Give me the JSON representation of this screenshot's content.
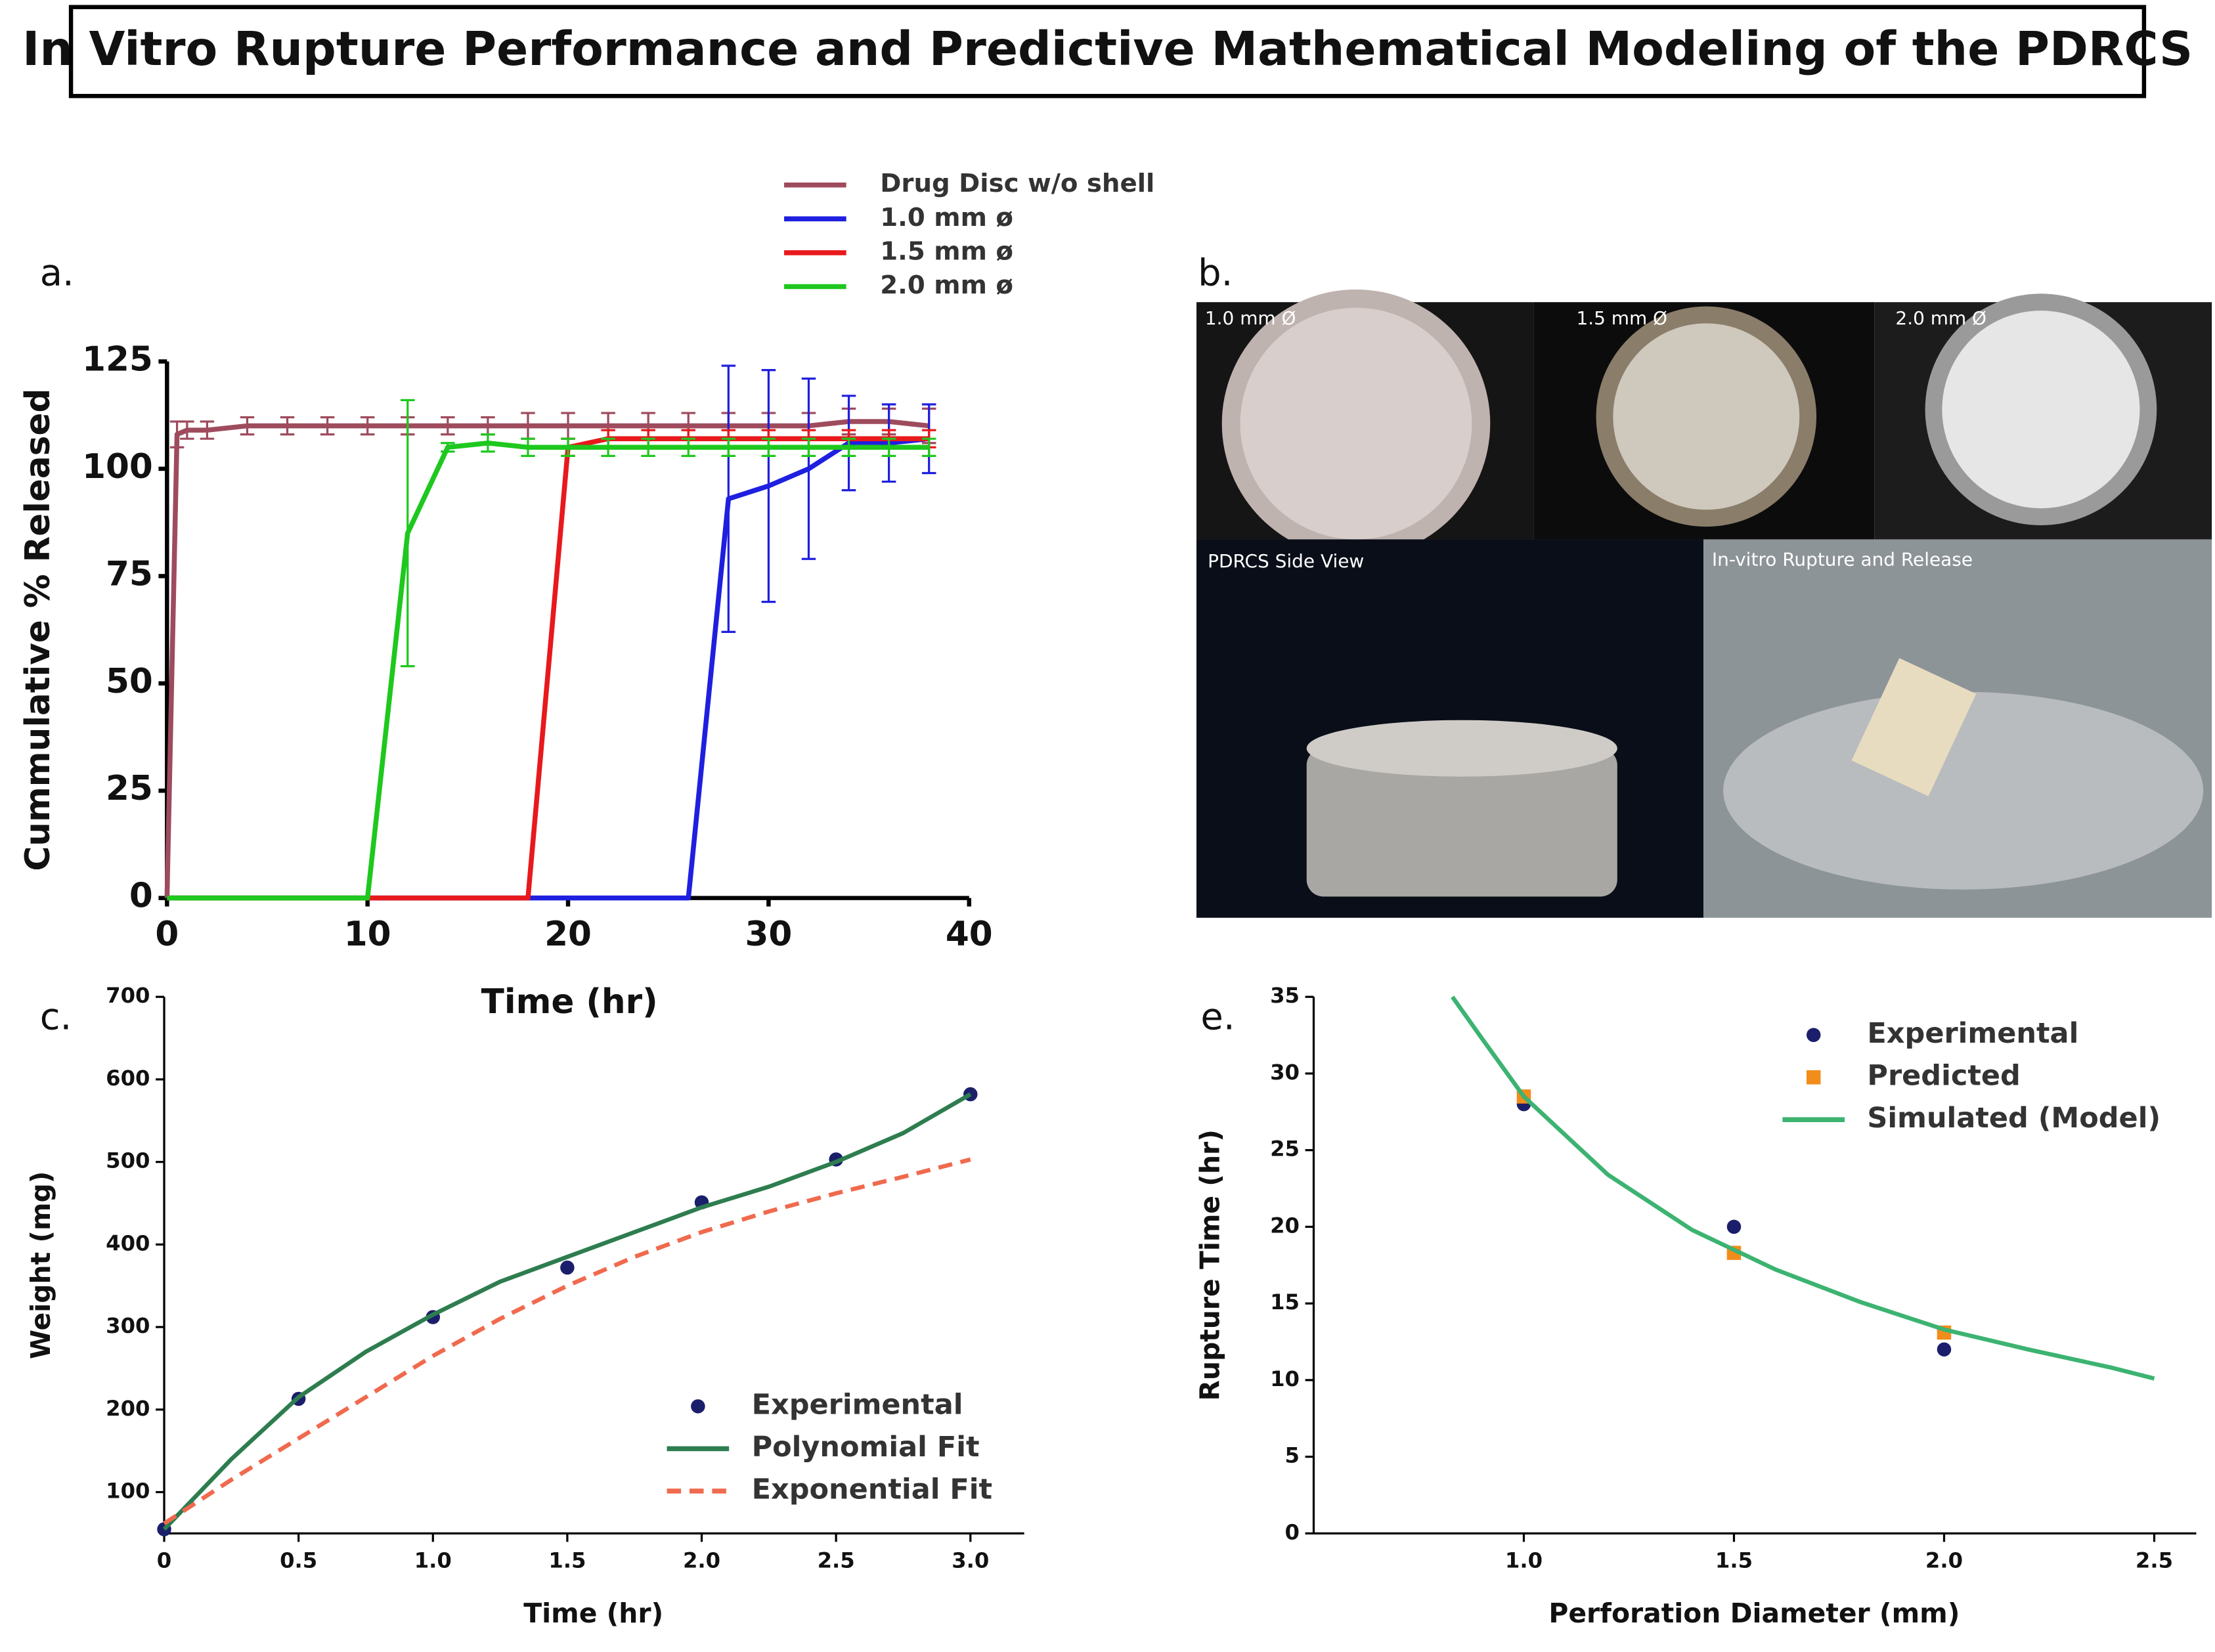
{
  "title": "In Vitro Rupture Performance and Predictive Mathematical Modeling of the PDRCS",
  "photos": {
    "panel_label": "b.",
    "captions": [
      "1.0 mm Ø",
      "1.5 mm Ø",
      "2.0 mm Ø",
      "PDRCS Side View",
      "In-vitro Rupture and Release"
    ]
  },
  "chart_data": [
    {
      "type": "line",
      "panel_label": "a.",
      "x_label": "Time (hr)",
      "y_label": "Cummulative % Released",
      "xlim": [
        0,
        40
      ],
      "xticks": [
        0,
        10,
        20,
        30,
        40
      ],
      "ylim": [
        0,
        125
      ],
      "yticks": [
        0,
        25,
        50,
        75,
        100,
        125
      ],
      "legend": "above",
      "series": [
        {
          "name": "Drug Disc w/o shell",
          "color": "#9e4b5e",
          "x": [
            0,
            0.5,
            1,
            2,
            4,
            6,
            8,
            10,
            12,
            14,
            16,
            18,
            20,
            22,
            24,
            26,
            28,
            30,
            32,
            34,
            36,
            38
          ],
          "values": [
            0,
            108,
            109,
            109,
            110,
            110,
            110,
            110,
            110,
            110,
            110,
            110,
            110,
            110,
            110,
            110,
            110,
            110,
            110,
            111,
            111,
            110
          ],
          "errors": [
            null,
            3,
            2,
            2,
            2,
            2,
            2,
            2,
            2,
            2,
            2,
            3,
            3,
            3,
            3,
            3,
            3,
            3,
            3,
            3,
            3,
            4
          ]
        },
        {
          "name": "1.0 mm ø",
          "color": "#1f1fe0",
          "x": [
            0,
            2,
            4,
            6,
            8,
            10,
            12,
            14,
            16,
            18,
            20,
            22,
            24,
            26,
            28,
            30,
            32,
            34,
            36,
            38
          ],
          "values": [
            0,
            0,
            0,
            0,
            0,
            0,
            0,
            0,
            0,
            0,
            0,
            0,
            0,
            0,
            93,
            96,
            100,
            106,
            106,
            107
          ],
          "errors": [
            null,
            null,
            null,
            null,
            null,
            null,
            null,
            null,
            null,
            null,
            null,
            null,
            null,
            null,
            31,
            27,
            21,
            11,
            9,
            8
          ]
        },
        {
          "name": "1.5 mm ø",
          "color": "#e8191c",
          "x": [
            0,
            2,
            4,
            6,
            8,
            10,
            12,
            14,
            16,
            18,
            20,
            22,
            24,
            26,
            28,
            30,
            32,
            34,
            36,
            38
          ],
          "values": [
            0,
            0,
            0,
            0,
            0,
            0,
            0,
            0,
            0,
            0,
            105,
            107,
            107,
            107,
            107,
            107,
            107,
            107,
            107,
            107
          ],
          "errors": [
            null,
            null,
            null,
            null,
            null,
            null,
            null,
            null,
            null,
            null,
            2,
            2,
            2,
            2,
            2,
            2,
            2,
            2,
            2,
            2
          ]
        },
        {
          "name": "2.0 mm ø",
          "color": "#1ec81e",
          "x": [
            0,
            2,
            4,
            6,
            8,
            10,
            12,
            14,
            16,
            18,
            20,
            22,
            24,
            26,
            28,
            30,
            32,
            34,
            36,
            38
          ],
          "values": [
            0,
            0,
            0,
            0,
            0,
            0,
            85,
            105,
            106,
            105,
            105,
            105,
            105,
            105,
            105,
            105,
            105,
            105,
            105,
            105
          ],
          "errors": [
            null,
            null,
            null,
            null,
            null,
            null,
            31,
            1,
            2,
            2,
            2,
            2,
            2,
            2,
            2,
            2,
            2,
            2,
            2,
            2
          ]
        }
      ]
    },
    {
      "type": "scatter",
      "panel_label": "c.",
      "x_label": "Time (hr)",
      "y_label": "Weight (mg)",
      "xlim": [
        0,
        3.2
      ],
      "xticks": [
        0,
        0.5,
        {
          "value": 1,
          "label": "1.0"
        },
        1.5,
        {
          "value": 2,
          "label": "2.0"
        },
        2.5,
        {
          "value": 3,
          "label": "3.0"
        }
      ],
      "ylim": [
        50,
        700
      ],
      "yticks": [
        100,
        200,
        300,
        400,
        500,
        600,
        700
      ],
      "legend": "lower right",
      "series": [
        {
          "name": "Experimental",
          "color": "#1b1f6b",
          "kind": "markers",
          "marker": "circle",
          "x": [
            0,
            0.5,
            1,
            1.5,
            2,
            2.5,
            3
          ],
          "values": [
            55,
            213,
            312,
            372,
            451,
            503,
            582
          ]
        },
        {
          "name": "Polynomial Fit",
          "color": "#2e7d4f",
          "kind": "line",
          "dashed": false,
          "x": [
            0,
            0.25,
            0.5,
            0.75,
            1,
            1.25,
            1.5,
            1.75,
            2,
            2.25,
            2.5,
            2.75,
            3
          ],
          "values": [
            55,
            140,
            215,
            270,
            315,
            355,
            385,
            415,
            445,
            470,
            500,
            535,
            582
          ]
        },
        {
          "name": "Exponential Fit",
          "color": "#f06a4e",
          "kind": "line",
          "dashed": true,
          "x": [
            0,
            0.25,
            0.5,
            0.75,
            1,
            1.25,
            1.5,
            1.75,
            2,
            2.25,
            2.5,
            2.75,
            3
          ],
          "values": [
            62,
            115,
            165,
            215,
            265,
            310,
            350,
            385,
            415,
            440,
            462,
            482,
            503
          ]
        }
      ]
    },
    {
      "type": "scatter",
      "panel_label": "e.",
      "x_label": "Perforation Diameter (mm)",
      "y_label": "Rupture Time (hr)",
      "xlim": [
        0.5,
        2.6
      ],
      "xticks": [
        {
          "value": 1,
          "label": "1.0"
        },
        1.5,
        {
          "value": 2,
          "label": "2.0"
        },
        2.5
      ],
      "ylim": [
        0,
        35
      ],
      "yticks": [
        0,
        5,
        10,
        15,
        20,
        25,
        30,
        35
      ],
      "legend": "upper right",
      "series": [
        {
          "name": "Experimental",
          "color": "#1b1f6b",
          "kind": "markers",
          "marker": "circle",
          "x": [
            1,
            1.5,
            2
          ],
          "values": [
            28,
            20,
            12
          ]
        },
        {
          "name": "Predicted",
          "color": "#f28c1a",
          "kind": "markers",
          "marker": "square",
          "x": [
            1,
            1.5,
            2
          ],
          "values": [
            28.5,
            18.3,
            13.1
          ]
        },
        {
          "name": "Simulated (Model)",
          "color": "#3cb371",
          "kind": "line",
          "dashed": false,
          "x": [
            0.83,
            0.9,
            1,
            1.2,
            1.4,
            1.6,
            1.8,
            2,
            2.2,
            2.4,
            2.5
          ],
          "values": [
            35,
            32.3,
            28.5,
            23.4,
            19.8,
            17.2,
            15.1,
            13.3,
            12,
            10.8,
            10.1
          ]
        }
      ]
    }
  ]
}
